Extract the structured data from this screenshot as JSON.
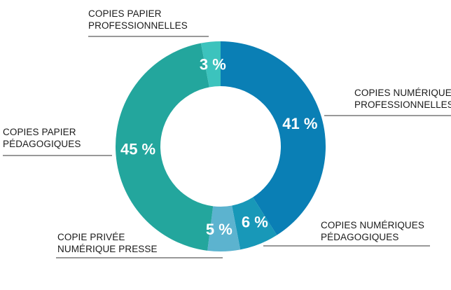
{
  "chart_data": {
    "type": "pie",
    "variant": "donut",
    "title": "",
    "start_at": "top",
    "direction": "clockwise",
    "slices": [
      {
        "lines": [
          "COPIES NUMÉRIQUES",
          "PROFESSIONNELLES"
        ],
        "value": 41,
        "label": "41 %",
        "color": "#0a7fb5"
      },
      {
        "lines": [
          "COPIES NUMÉRIQUES",
          "PÉDAGOGIQUES"
        ],
        "value": 6,
        "label": "6 %",
        "color": "#1898b8"
      },
      {
        "lines": [
          "COPIE PRIVÉE",
          "NUMÉRIQUE PRESSE"
        ],
        "value": 5,
        "label": "5 %",
        "color": "#5cb3cf"
      },
      {
        "lines": [
          "COPIES PAPIER",
          "PÉDAGOGIQUES"
        ],
        "value": 45,
        "label": "45 %",
        "color": "#23a69d"
      },
      {
        "lines": [
          "COPIES PAPIER",
          "PROFESSIONNELLES"
        ],
        "value": 3,
        "label": "3 %",
        "color": "#3cc3bd"
      }
    ]
  }
}
